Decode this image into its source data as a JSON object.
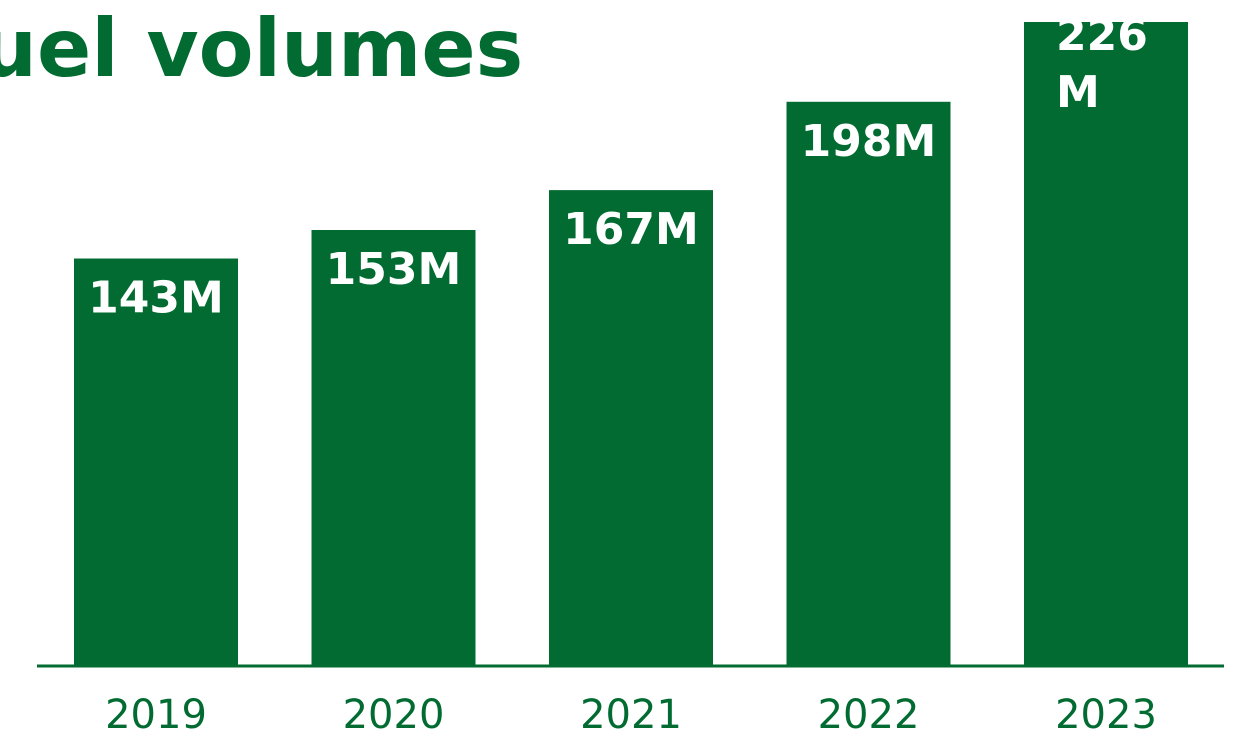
{
  "colors": {
    "bar": "#016b31",
    "title": "#016b31",
    "axis": "#016b31",
    "tick": "#016b31",
    "bar_label": "#ffffff"
  },
  "chart_data": {
    "type": "bar",
    "title": "uel volumes",
    "categories": [
      "2019",
      "2020",
      "2021",
      "2022",
      "2023"
    ],
    "values": [
      143,
      153,
      167,
      198,
      226
    ],
    "value_labels": [
      "143M",
      "153M",
      "167M",
      "198M",
      "226M"
    ],
    "unit": "M",
    "xlabel": "",
    "ylabel": "",
    "ylim": [
      0,
      226
    ],
    "grid": false,
    "legend": "none"
  }
}
